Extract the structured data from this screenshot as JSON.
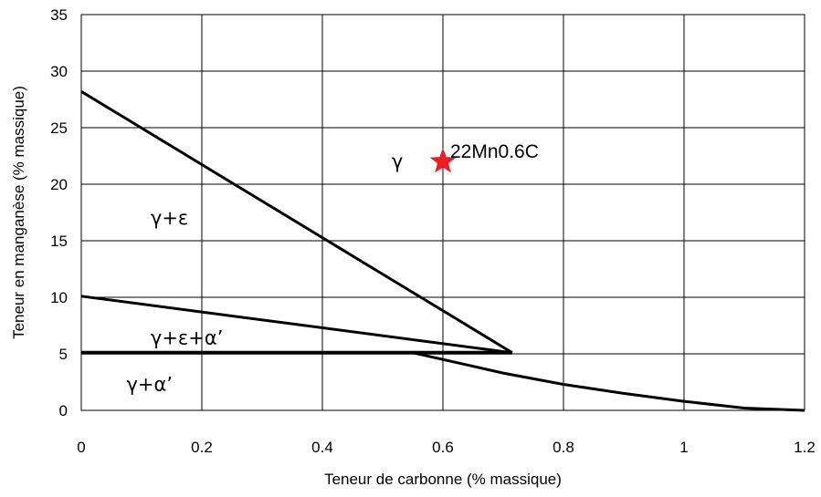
{
  "chart_data": {
    "type": "line",
    "xlabel": "Teneur de carbonne (% massique)",
    "ylabel": "Teneur en manganèse (% massique)",
    "xlim": [
      0,
      1.2
    ],
    "ylim": [
      0,
      35
    ],
    "x_ticks": [
      "0",
      "0.2",
      "0.4",
      "0.6",
      "0.8",
      "1",
      "1.2"
    ],
    "y_ticks": [
      "0",
      "5",
      "10",
      "15",
      "20",
      "25",
      "30",
      "35"
    ],
    "grid": true,
    "series": [
      {
        "points": [
          [
            0,
            28.2
          ],
          [
            0.715,
            5.1
          ]
        ]
      },
      {
        "points": [
          [
            0,
            10.1
          ],
          [
            0.715,
            5.1
          ]
        ]
      },
      {
        "points": [
          [
            0,
            5.1
          ],
          [
            0.715,
            5.1
          ]
        ]
      },
      {
        "points": [
          [
            0.55,
            5.1
          ],
          [
            0.6,
            4.5
          ],
          [
            0.7,
            3.3
          ],
          [
            0.8,
            2.3
          ],
          [
            0.9,
            1.5
          ],
          [
            1.0,
            0.8
          ],
          [
            1.1,
            0.2
          ],
          [
            1.2,
            0.0
          ]
        ]
      }
    ],
    "region_labels": [
      {
        "text": "γ",
        "x": 0.515,
        "y": 22.0
      },
      {
        "text": "γ+ε",
        "x": 0.115,
        "y": 17.0
      },
      {
        "text": "γ+ε+α’",
        "x": 0.115,
        "y": 6.4
      },
      {
        "text": "γ+α’",
        "x": 0.075,
        "y": 2.3
      }
    ],
    "marker": {
      "label": "22Mn0.6C",
      "x": 0.6,
      "y": 22.0,
      "shape": "star",
      "color": "#ee1c25"
    },
    "line_color": "#000000",
    "grid_color": "#000000"
  }
}
